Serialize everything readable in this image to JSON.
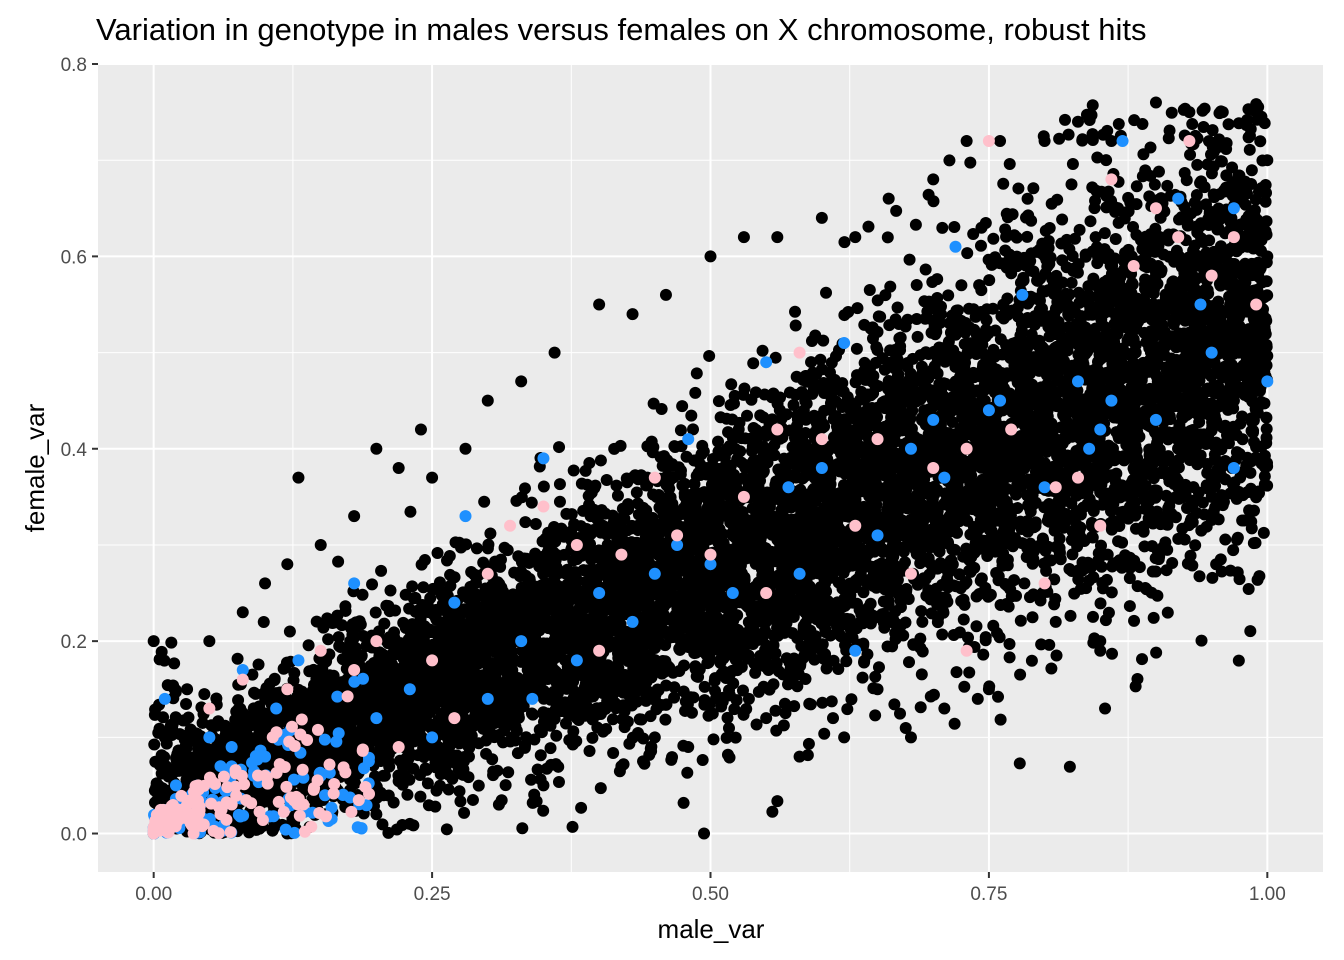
{
  "chart_data": {
    "type": "scatter",
    "title": "Variation in genotype in males versus females on X chromosome, robust hits",
    "xlabel": "male_var",
    "ylabel": "female_var",
    "xlim": [
      -0.05,
      1.05
    ],
    "ylim": [
      -0.04,
      0.8
    ],
    "x_ticks": [
      0.0,
      0.25,
      0.5,
      0.75,
      1.0
    ],
    "x_tick_labels": [
      "0.00",
      "0.25",
      "0.50",
      "0.75",
      "1.00"
    ],
    "y_ticks": [
      0.0,
      0.2,
      0.4,
      0.6,
      0.8
    ],
    "y_tick_labels": [
      "0.0",
      "0.2",
      "0.4",
      "0.6",
      "0.8"
    ],
    "grid": true,
    "legend": "none",
    "panel_background": "#ebebeb",
    "gridline_color": "#ffffff",
    "series": [
      {
        "name": "all_variants",
        "color": "#000000",
        "x": [
          0.0,
          0.0,
          0.01,
          0.02,
          0.03,
          0.05,
          0.08,
          0.1,
          0.12,
          0.15,
          0.18,
          0.2,
          0.22,
          0.25,
          0.28,
          0.3,
          0.33,
          0.36,
          0.4,
          0.43,
          0.46,
          0.5,
          0.53,
          0.56,
          0.6,
          0.63,
          0.66,
          0.7,
          0.73,
          0.76,
          0.8,
          0.83,
          0.86,
          0.9,
          0.93,
          0.96,
          1.0,
          0.2,
          0.35,
          0.45,
          0.55,
          0.65,
          0.75,
          0.85,
          0.95,
          0.12,
          0.23,
          0.31,
          0.42,
          0.48,
          0.61,
          0.71,
          0.81,
          0.91,
          0.99,
          0.38,
          0.38,
          0.52,
          0.66,
          0.78,
          0.88,
          0.93,
          1.0,
          0.68,
          0.74,
          0.85,
          0.24,
          0.13,
          0.16,
          0.58,
          0.6,
          0.44,
          0.62
        ],
        "y": [
          0.0,
          0.2,
          0.1,
          0.05,
          0.15,
          0.2,
          0.23,
          0.26,
          0.28,
          0.3,
          0.33,
          0.4,
          0.38,
          0.37,
          0.4,
          0.45,
          0.47,
          0.5,
          0.55,
          0.54,
          0.56,
          0.6,
          0.62,
          0.62,
          0.64,
          0.62,
          0.66,
          0.68,
          0.72,
          0.72,
          0.72,
          0.74,
          0.72,
          0.76,
          0.75,
          0.75,
          0.7,
          0.02,
          0.05,
          0.1,
          0.12,
          0.15,
          0.15,
          0.2,
          0.35,
          0.0,
          0.01,
          0.03,
          0.07,
          0.09,
          0.12,
          0.13,
          0.22,
          0.33,
          0.46,
          0.12,
          0.3,
          0.25,
          0.35,
          0.4,
          0.5,
          0.55,
          0.6,
          0.1,
          0.14,
          0.19,
          0.42,
          0.37,
          0.02,
          0.08,
          0.19,
          0.28,
          0.1
        ]
      },
      {
        "name": "highlight_blue",
        "color": "#1e90ff",
        "x": [
          0.0,
          0.01,
          0.02,
          0.03,
          0.05,
          0.08,
          0.1,
          0.13,
          0.15,
          0.18,
          0.2,
          0.23,
          0.25,
          0.28,
          0.3,
          0.33,
          0.35,
          0.38,
          0.4,
          0.43,
          0.45,
          0.48,
          0.5,
          0.52,
          0.55,
          0.57,
          0.6,
          0.62,
          0.65,
          0.68,
          0.7,
          0.72,
          0.75,
          0.78,
          0.8,
          0.83,
          0.85,
          0.87,
          0.9,
          0.92,
          0.95,
          0.97,
          1.0,
          0.86,
          0.71,
          0.76,
          0.84,
          0.94,
          0.97,
          0.63,
          0.17,
          0.27,
          0.34,
          0.47,
          0.58,
          0.11,
          0.06,
          0.07,
          0.09
        ],
        "y": [
          0.0,
          0.14,
          0.05,
          0.03,
          0.1,
          0.17,
          0.08,
          0.18,
          0.06,
          0.26,
          0.12,
          0.15,
          0.1,
          0.33,
          0.14,
          0.2,
          0.39,
          0.18,
          0.25,
          0.22,
          0.27,
          0.41,
          0.28,
          0.25,
          0.49,
          0.36,
          0.38,
          0.51,
          0.31,
          0.4,
          0.43,
          0.61,
          0.44,
          0.56,
          0.36,
          0.47,
          0.42,
          0.72,
          0.43,
          0.66,
          0.5,
          0.65,
          0.47,
          0.45,
          0.37,
          0.45,
          0.4,
          0.55,
          0.38,
          0.19,
          0.04,
          0.24,
          0.14,
          0.3,
          0.27,
          0.13,
          0.07,
          0.09,
          0.06
        ]
      },
      {
        "name": "highlight_pink",
        "color": "#ffc0cb",
        "x": [
          0.0,
          0.01,
          0.02,
          0.03,
          0.04,
          0.05,
          0.06,
          0.08,
          0.1,
          0.12,
          0.15,
          0.18,
          0.2,
          0.22,
          0.25,
          0.27,
          0.3,
          0.32,
          0.35,
          0.38,
          0.4,
          0.42,
          0.45,
          0.47,
          0.5,
          0.53,
          0.55,
          0.58,
          0.6,
          0.63,
          0.65,
          0.68,
          0.7,
          0.73,
          0.75,
          0.77,
          0.8,
          0.83,
          0.85,
          0.88,
          0.9,
          0.92,
          0.95,
          0.97,
          0.99,
          0.73,
          0.81,
          0.56,
          0.86,
          0.93
        ],
        "y": [
          0.0,
          0.02,
          0.01,
          0.03,
          0.05,
          0.13,
          0.02,
          0.16,
          0.06,
          0.15,
          0.19,
          0.17,
          0.2,
          0.09,
          0.18,
          0.12,
          0.27,
          0.32,
          0.34,
          0.3,
          0.19,
          0.29,
          0.37,
          0.31,
          0.29,
          0.35,
          0.25,
          0.5,
          0.41,
          0.32,
          0.41,
          0.27,
          0.38,
          0.4,
          0.72,
          0.42,
          0.26,
          0.37,
          0.32,
          0.59,
          0.65,
          0.62,
          0.58,
          0.62,
          0.55,
          0.19,
          0.36,
          0.42,
          0.68,
          0.72
        ]
      }
    ]
  }
}
